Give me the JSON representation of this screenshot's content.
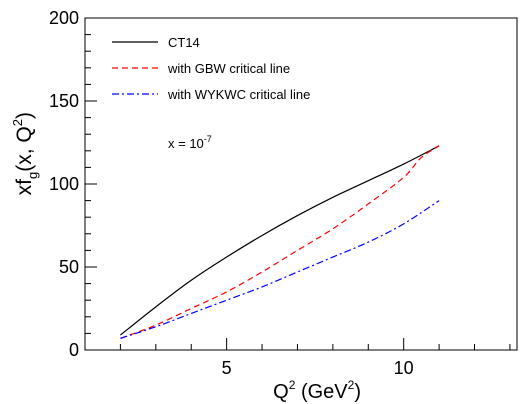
{
  "chart_data": {
    "type": "line",
    "xlabel": {
      "base": "Q",
      "sup1": "2",
      "mid": " (GeV",
      "sup2": "2",
      "end": ")"
    },
    "ylabel": {
      "pre": "xf",
      "sub": "g",
      "mid": "(x, Q",
      "sup": "2",
      "end": ")"
    },
    "annotation": {
      "base": "x = 10",
      "sup": "-7"
    },
    "xlim": [
      1,
      13.2
    ],
    "ylim": [
      0,
      200
    ],
    "x_ticks": [
      5,
      10
    ],
    "x_tick_labels": [
      "5",
      "10"
    ],
    "y_ticks": [
      0,
      50,
      100,
      150,
      200
    ],
    "y_tick_labels": [
      "0",
      "50",
      "100",
      "150",
      "200"
    ],
    "grid": false,
    "legend_position": "top-left",
    "series": [
      {
        "name": "CT14",
        "color": "#000000",
        "dash": "solid",
        "x": [
          2,
          3,
          4,
          5,
          6,
          7,
          8,
          9,
          10,
          11
        ],
        "y": [
          9,
          26,
          42,
          56,
          69,
          81,
          92,
          102,
          112,
          123
        ]
      },
      {
        "name": "with GBW critical line",
        "color": "#ff0000",
        "dash": "dashed",
        "x": [
          2,
          3,
          4,
          5,
          6,
          7,
          8,
          9,
          10,
          10.5,
          11
        ],
        "y": [
          7,
          15,
          25,
          35,
          47,
          60,
          73,
          88,
          104,
          116,
          123
        ]
      },
      {
        "name": "with WYKWC critical line",
        "color": "#0000ff",
        "dash": "dashdot",
        "x": [
          2,
          3,
          4,
          5,
          6,
          7,
          8,
          9,
          10,
          11
        ],
        "y": [
          7,
          14,
          22,
          30,
          38,
          47,
          56,
          65,
          76,
          90
        ]
      }
    ]
  }
}
